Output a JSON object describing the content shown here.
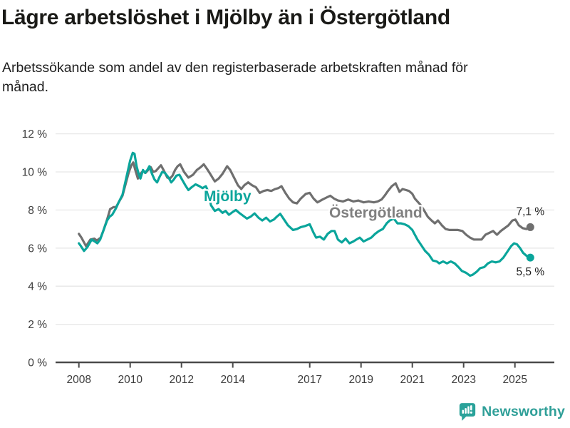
{
  "header": {
    "title": "Lägre arbetslöshet i Mjölby än i Östergötland",
    "subtitle": "Arbetssökande som andel av den registerbaserade arbetskraften månad för månad."
  },
  "footer": {
    "brand_name": "Newsworthy",
    "brand_icon": "newsworthy-speech-bubble-bar-chart-icon"
  },
  "colors": {
    "mjolby_line": "#0aa59b",
    "ostergotland_line": "#6f6f6f",
    "ostergotland_label": "#808080",
    "grid": "#e7e7e7",
    "axis": "#4a4a4a",
    "tick_text": "#3c3c3c",
    "end_label_text": "#1d1d1d",
    "brand_teal": "#2f9f98"
  },
  "chart_data": {
    "type": "line",
    "title": "Lägre arbetslöshet i Mjölby än i Östergötland",
    "subtitle": "Arbetssökande som andel av den registerbaserade arbetskraften månad för månad.",
    "unit": "%",
    "grid": "horizontal",
    "legend": "inline-labels",
    "x_axis": {
      "range": [
        2007.8,
        2026.4
      ],
      "ticks": [
        2008,
        2010,
        2012,
        2014,
        2017,
        2019,
        2021,
        2023,
        2025
      ],
      "tick_labels": [
        "2008",
        "2010",
        "2012",
        "2014",
        "2017",
        "2019",
        "2021",
        "2023",
        "2025"
      ]
    },
    "y_axis": {
      "range": [
        0,
        12
      ],
      "ticks": [
        0,
        2,
        4,
        6,
        8,
        10,
        12
      ],
      "tick_labels": [
        "0 %",
        "2 %",
        "4 %",
        "6 %",
        "8 %",
        "10 %",
        "12 %"
      ]
    },
    "series": [
      {
        "name": "Mjölby",
        "color": "#0aa59b",
        "label_color": "#0aa59b",
        "end_label": "5,5 %",
        "end_value": 5.5,
        "end_label_side": "below",
        "points": [
          [
            2008.0,
            6.25
          ],
          [
            2008.08,
            6.1
          ],
          [
            2008.2,
            5.85
          ],
          [
            2008.33,
            6.05
          ],
          [
            2008.5,
            6.45
          ],
          [
            2008.62,
            6.35
          ],
          [
            2008.72,
            6.25
          ],
          [
            2008.83,
            6.45
          ],
          [
            2008.95,
            6.9
          ],
          [
            2009.1,
            7.45
          ],
          [
            2009.2,
            7.65
          ],
          [
            2009.3,
            7.75
          ],
          [
            2009.45,
            8.1
          ],
          [
            2009.55,
            8.4
          ],
          [
            2009.7,
            8.8
          ],
          [
            2009.8,
            9.4
          ],
          [
            2009.9,
            10.0
          ],
          [
            2010.0,
            10.6
          ],
          [
            2010.1,
            11.0
          ],
          [
            2010.17,
            10.95
          ],
          [
            2010.25,
            10.3
          ],
          [
            2010.33,
            9.9
          ],
          [
            2010.4,
            9.65
          ],
          [
            2010.5,
            10.1
          ],
          [
            2010.58,
            9.95
          ],
          [
            2010.67,
            10.1
          ],
          [
            2010.75,
            10.3
          ],
          [
            2010.85,
            9.9
          ],
          [
            2010.95,
            9.6
          ],
          [
            2011.05,
            9.45
          ],
          [
            2011.15,
            9.75
          ],
          [
            2011.25,
            10.0
          ],
          [
            2011.35,
            9.95
          ],
          [
            2011.5,
            9.7
          ],
          [
            2011.6,
            9.45
          ],
          [
            2011.7,
            9.6
          ],
          [
            2011.8,
            9.8
          ],
          [
            2011.92,
            9.85
          ],
          [
            2012.0,
            9.65
          ],
          [
            2012.15,
            9.3
          ],
          [
            2012.27,
            9.05
          ],
          [
            2012.4,
            9.2
          ],
          [
            2012.55,
            9.35
          ],
          [
            2012.7,
            9.25
          ],
          [
            2012.82,
            9.15
          ],
          [
            2012.95,
            9.25
          ],
          [
            2013.05,
            8.95
          ],
          [
            2013.15,
            8.25
          ],
          [
            2013.3,
            7.95
          ],
          [
            2013.45,
            8.05
          ],
          [
            2013.6,
            7.85
          ],
          [
            2013.72,
            7.95
          ],
          [
            2013.85,
            7.75
          ],
          [
            2014.0,
            7.9
          ],
          [
            2014.12,
            8.0
          ],
          [
            2014.25,
            7.85
          ],
          [
            2014.4,
            7.7
          ],
          [
            2014.55,
            7.55
          ],
          [
            2014.7,
            7.65
          ],
          [
            2014.85,
            7.82
          ],
          [
            2015.0,
            7.6
          ],
          [
            2015.15,
            7.45
          ],
          [
            2015.3,
            7.6
          ],
          [
            2015.45,
            7.4
          ],
          [
            2015.6,
            7.5
          ],
          [
            2015.72,
            7.65
          ],
          [
            2015.85,
            7.8
          ],
          [
            2016.0,
            7.5
          ],
          [
            2016.15,
            7.2
          ],
          [
            2016.35,
            6.95
          ],
          [
            2016.5,
            7.0
          ],
          [
            2016.65,
            7.1
          ],
          [
            2016.8,
            7.15
          ],
          [
            2017.0,
            7.25
          ],
          [
            2017.15,
            6.8
          ],
          [
            2017.25,
            6.55
          ],
          [
            2017.4,
            6.6
          ],
          [
            2017.55,
            6.45
          ],
          [
            2017.7,
            6.75
          ],
          [
            2017.85,
            6.9
          ],
          [
            2017.97,
            6.9
          ],
          [
            2018.1,
            6.45
          ],
          [
            2018.25,
            6.3
          ],
          [
            2018.4,
            6.5
          ],
          [
            2018.55,
            6.25
          ],
          [
            2018.7,
            6.35
          ],
          [
            2018.82,
            6.45
          ],
          [
            2018.95,
            6.55
          ],
          [
            2019.1,
            6.35
          ],
          [
            2019.25,
            6.45
          ],
          [
            2019.4,
            6.55
          ],
          [
            2019.55,
            6.75
          ],
          [
            2019.7,
            6.9
          ],
          [
            2019.85,
            7.0
          ],
          [
            2020.0,
            7.3
          ],
          [
            2020.12,
            7.45
          ],
          [
            2020.28,
            7.55
          ],
          [
            2020.42,
            7.3
          ],
          [
            2020.55,
            7.3
          ],
          [
            2020.7,
            7.25
          ],
          [
            2020.85,
            7.15
          ],
          [
            2021.0,
            6.95
          ],
          [
            2021.1,
            6.7
          ],
          [
            2021.2,
            6.45
          ],
          [
            2021.3,
            6.25
          ],
          [
            2021.4,
            6.05
          ],
          [
            2021.5,
            5.85
          ],
          [
            2021.65,
            5.65
          ],
          [
            2021.8,
            5.35
          ],
          [
            2021.95,
            5.3
          ],
          [
            2022.05,
            5.2
          ],
          [
            2022.2,
            5.3
          ],
          [
            2022.35,
            5.2
          ],
          [
            2022.5,
            5.3
          ],
          [
            2022.65,
            5.2
          ],
          [
            2022.8,
            5.0
          ],
          [
            2022.93,
            4.8
          ],
          [
            2023.1,
            4.7
          ],
          [
            2023.25,
            4.55
          ],
          [
            2023.35,
            4.6
          ],
          [
            2023.5,
            4.75
          ],
          [
            2023.65,
            4.95
          ],
          [
            2023.8,
            5.0
          ],
          [
            2023.95,
            5.2
          ],
          [
            2024.1,
            5.3
          ],
          [
            2024.25,
            5.25
          ],
          [
            2024.4,
            5.3
          ],
          [
            2024.55,
            5.5
          ],
          [
            2024.7,
            5.8
          ],
          [
            2024.85,
            6.1
          ],
          [
            2024.97,
            6.25
          ],
          [
            2025.08,
            6.2
          ],
          [
            2025.2,
            6.0
          ],
          [
            2025.32,
            5.75
          ],
          [
            2025.45,
            5.6
          ],
          [
            2025.6,
            5.5
          ]
        ]
      },
      {
        "name": "Östergötland",
        "color": "#6f6f6f",
        "label_color": "#808080",
        "end_label": "7,1 %",
        "end_value": 7.1,
        "end_label_side": "above",
        "points": [
          [
            2008.0,
            6.75
          ],
          [
            2008.1,
            6.55
          ],
          [
            2008.28,
            6.1
          ],
          [
            2008.45,
            6.45
          ],
          [
            2008.6,
            6.5
          ],
          [
            2008.7,
            6.4
          ],
          [
            2008.85,
            6.55
          ],
          [
            2008.95,
            6.9
          ],
          [
            2009.1,
            7.5
          ],
          [
            2009.22,
            8.05
          ],
          [
            2009.35,
            8.15
          ],
          [
            2009.45,
            8.15
          ],
          [
            2009.55,
            8.4
          ],
          [
            2009.7,
            8.75
          ],
          [
            2009.85,
            9.5
          ],
          [
            2009.95,
            10.0
          ],
          [
            2010.05,
            10.35
          ],
          [
            2010.12,
            10.5
          ],
          [
            2010.2,
            10.1
          ],
          [
            2010.3,
            9.65
          ],
          [
            2010.4,
            9.9
          ],
          [
            2010.5,
            10.05
          ],
          [
            2010.6,
            9.95
          ],
          [
            2010.7,
            10.1
          ],
          [
            2010.8,
            10.25
          ],
          [
            2010.9,
            10.0
          ],
          [
            2011.0,
            10.05
          ],
          [
            2011.1,
            10.2
          ],
          [
            2011.2,
            10.35
          ],
          [
            2011.3,
            10.1
          ],
          [
            2011.45,
            9.7
          ],
          [
            2011.55,
            9.65
          ],
          [
            2011.65,
            9.8
          ],
          [
            2011.75,
            10.1
          ],
          [
            2011.85,
            10.3
          ],
          [
            2011.95,
            10.4
          ],
          [
            2012.1,
            10.0
          ],
          [
            2012.27,
            9.7
          ],
          [
            2012.45,
            9.85
          ],
          [
            2012.6,
            10.1
          ],
          [
            2012.75,
            10.25
          ],
          [
            2012.87,
            10.4
          ],
          [
            2013.0,
            10.15
          ],
          [
            2013.12,
            9.9
          ],
          [
            2013.3,
            9.5
          ],
          [
            2013.45,
            9.65
          ],
          [
            2013.6,
            9.9
          ],
          [
            2013.78,
            10.3
          ],
          [
            2013.9,
            10.1
          ],
          [
            2014.05,
            9.7
          ],
          [
            2014.2,
            9.3
          ],
          [
            2014.33,
            9.1
          ],
          [
            2014.45,
            9.3
          ],
          [
            2014.6,
            9.45
          ],
          [
            2014.75,
            9.3
          ],
          [
            2014.9,
            9.2
          ],
          [
            2015.05,
            8.9
          ],
          [
            2015.2,
            9.0
          ],
          [
            2015.35,
            9.05
          ],
          [
            2015.5,
            9.0
          ],
          [
            2015.65,
            9.1
          ],
          [
            2015.78,
            9.15
          ],
          [
            2015.9,
            9.25
          ],
          [
            2016.05,
            8.9
          ],
          [
            2016.2,
            8.6
          ],
          [
            2016.35,
            8.4
          ],
          [
            2016.5,
            8.35
          ],
          [
            2016.65,
            8.6
          ],
          [
            2016.85,
            8.85
          ],
          [
            2017.0,
            8.9
          ],
          [
            2017.15,
            8.6
          ],
          [
            2017.3,
            8.4
          ],
          [
            2017.5,
            8.55
          ],
          [
            2017.65,
            8.65
          ],
          [
            2017.8,
            8.75
          ],
          [
            2017.95,
            8.6
          ],
          [
            2018.1,
            8.5
          ],
          [
            2018.3,
            8.45
          ],
          [
            2018.5,
            8.55
          ],
          [
            2018.7,
            8.45
          ],
          [
            2018.9,
            8.5
          ],
          [
            2019.1,
            8.4
          ],
          [
            2019.3,
            8.45
          ],
          [
            2019.5,
            8.4
          ],
          [
            2019.65,
            8.45
          ],
          [
            2019.8,
            8.55
          ],
          [
            2019.92,
            8.75
          ],
          [
            2020.05,
            9.0
          ],
          [
            2020.2,
            9.25
          ],
          [
            2020.35,
            9.4
          ],
          [
            2020.5,
            8.95
          ],
          [
            2020.62,
            9.1
          ],
          [
            2020.75,
            9.05
          ],
          [
            2020.87,
            9.0
          ],
          [
            2021.0,
            8.85
          ],
          [
            2021.1,
            8.6
          ],
          [
            2021.2,
            8.45
          ],
          [
            2021.3,
            8.3
          ],
          [
            2021.45,
            8.0
          ],
          [
            2021.6,
            7.65
          ],
          [
            2021.75,
            7.45
          ],
          [
            2021.88,
            7.3
          ],
          [
            2022.0,
            7.45
          ],
          [
            2022.15,
            7.2
          ],
          [
            2022.3,
            7.0
          ],
          [
            2022.45,
            6.95
          ],
          [
            2022.6,
            6.95
          ],
          [
            2022.78,
            6.95
          ],
          [
            2022.95,
            6.9
          ],
          [
            2023.1,
            6.7
          ],
          [
            2023.25,
            6.55
          ],
          [
            2023.4,
            6.45
          ],
          [
            2023.55,
            6.45
          ],
          [
            2023.7,
            6.45
          ],
          [
            2023.85,
            6.7
          ],
          [
            2024.0,
            6.8
          ],
          [
            2024.15,
            6.9
          ],
          [
            2024.3,
            6.7
          ],
          [
            2024.45,
            6.9
          ],
          [
            2024.6,
            7.05
          ],
          [
            2024.75,
            7.2
          ],
          [
            2024.9,
            7.45
          ],
          [
            2025.02,
            7.5
          ],
          [
            2025.15,
            7.2
          ],
          [
            2025.3,
            7.05
          ],
          [
            2025.45,
            7.0
          ],
          [
            2025.6,
            7.1
          ]
        ]
      }
    ]
  }
}
